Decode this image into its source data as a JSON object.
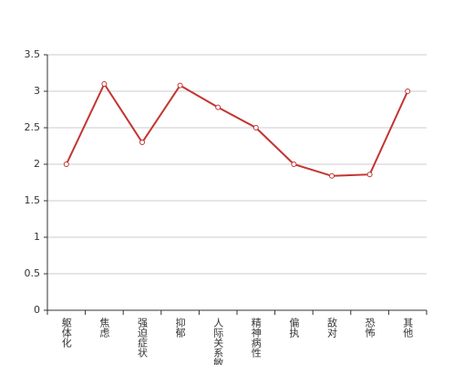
{
  "chart_data": {
    "type": "line",
    "categories": [
      "躯体化",
      "焦虑",
      "强迫症状",
      "抑郁",
      "人际关系敏感",
      "精神病性",
      "偏执",
      "敌对",
      "恐怖",
      "其他"
    ],
    "values": [
      2.0,
      3.1,
      2.3,
      3.08,
      2.78,
      2.5,
      2.0,
      1.84,
      1.86,
      3.0
    ],
    "color": "#c23531",
    "ylim": [
      0,
      3.5
    ],
    "yticks": [
      0,
      0.5,
      1,
      1.5,
      2,
      2.5,
      3,
      3.5
    ],
    "grid": true
  }
}
